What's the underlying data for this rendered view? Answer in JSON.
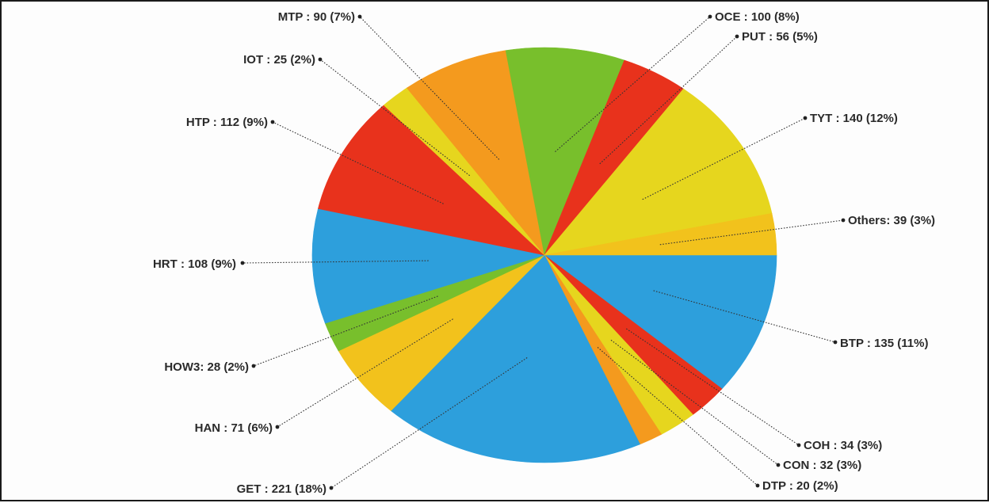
{
  "chart_data": {
    "type": "pie",
    "title": "",
    "slices": [
      {
        "label": "BTP : 135 (11%)",
        "name": "BTP",
        "value": 135,
        "percent": 11,
        "color": "#2d9fdc"
      },
      {
        "label": "COH : 34 (3%)",
        "name": "COH",
        "value": 34,
        "percent": 3,
        "color": "#e8321c"
      },
      {
        "label": "CON : 32 (3%)",
        "name": "CON",
        "value": 32,
        "percent": 3,
        "color": "#e6d61e"
      },
      {
        "label": "DTP : 20 (2%)",
        "name": "DTP",
        "value": 20,
        "percent": 2,
        "color": "#f49a1e"
      },
      {
        "label": "GET : 221 (18%)",
        "name": "GET",
        "value": 221,
        "percent": 18,
        "color": "#2d9fdc"
      },
      {
        "label": "HAN : 71 (6%)",
        "name": "HAN",
        "value": 71,
        "percent": 6,
        "color": "#f2c21c"
      },
      {
        "label": "HOW3: 28 (2%)",
        "name": "HOW3",
        "value": 28,
        "percent": 2,
        "color": "#78bf2c"
      },
      {
        "label": "HRT : 108 (9%)",
        "name": "HRT",
        "value": 108,
        "percent": 9,
        "color": "#2d9fdc"
      },
      {
        "label": "HTP : 112 (9%)",
        "name": "HTP",
        "value": 112,
        "percent": 9,
        "color": "#e8321c"
      },
      {
        "label": "IOT : 25 (2%)",
        "name": "IOT",
        "value": 25,
        "percent": 2,
        "color": "#e6d61e"
      },
      {
        "label": "MTP : 90 (7%)",
        "name": "MTP",
        "value": 90,
        "percent": 7,
        "color": "#f49a1e"
      },
      {
        "label": "OCE : 100 (8%)",
        "name": "OCE",
        "value": 100,
        "percent": 8,
        "color": "#78bf2c"
      },
      {
        "label": "PUT : 56 (5%)",
        "name": "PUT",
        "value": 56,
        "percent": 5,
        "color": "#e8321c"
      },
      {
        "label": "TYT : 140 (12%)",
        "name": "TYT",
        "value": 140,
        "percent": 12,
        "color": "#e6d61e"
      },
      {
        "label": "Others: 39 (3%)",
        "name": "Others",
        "value": 39,
        "percent": 3,
        "color": "#f2c21c"
      }
    ],
    "start_angle": "3 o'clock",
    "direction": "clockwise",
    "legend": "none (labels with leader lines)"
  }
}
